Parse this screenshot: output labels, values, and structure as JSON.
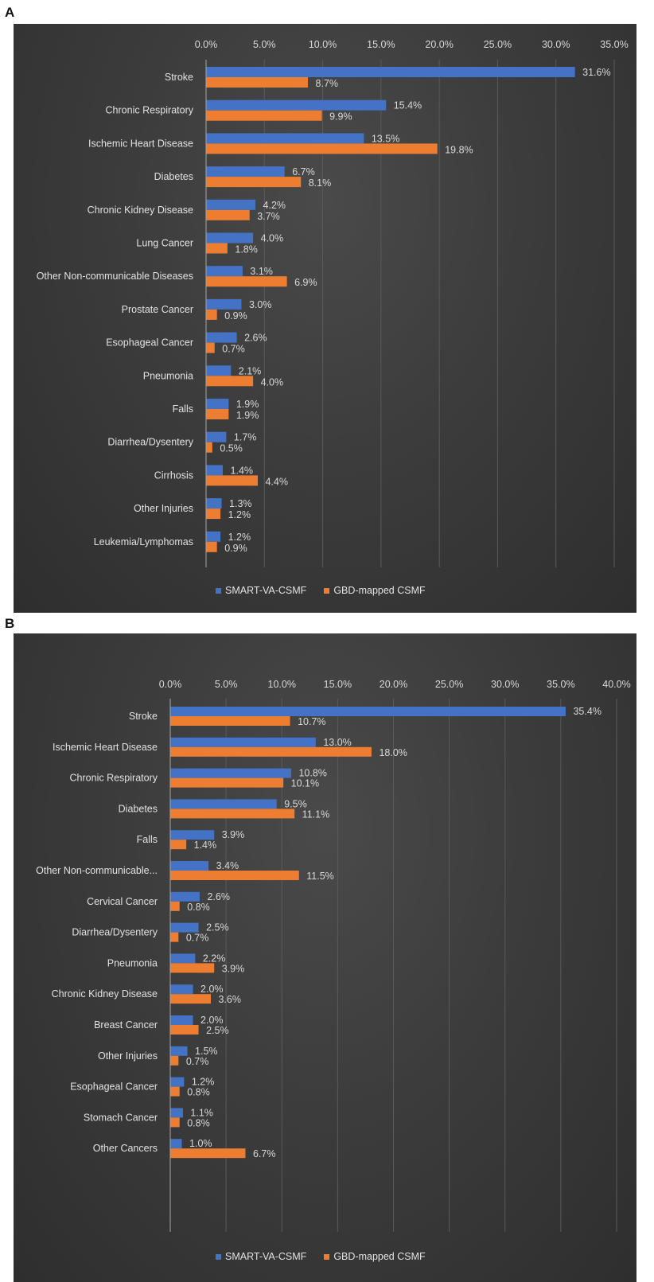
{
  "panels": [
    {
      "letter": "A"
    },
    {
      "letter": "B"
    }
  ],
  "colors": {
    "smart": "#4472C4",
    "gbd": "#ED7D31",
    "background": "#3c3c3c"
  },
  "chart_data": [
    {
      "type": "bar",
      "orientation": "horizontal",
      "axis_position": "top",
      "xlim": [
        0,
        35
      ],
      "xticks": [
        "0.0%",
        "5.0%",
        "10.0%",
        "15.0%",
        "20.0%",
        "25.0%",
        "30.0%",
        "35.0%"
      ],
      "grid": true,
      "legend_position": "bottom",
      "categories": [
        "Stroke",
        "Chronic Respiratory",
        "Ischemic Heart Disease",
        "Diabetes",
        "Chronic Kidney Disease",
        "Lung Cancer",
        "Other Non-communicable Diseases",
        "Prostate Cancer",
        "Esophageal Cancer",
        "Pneumonia",
        "Falls",
        "Diarrhea/Dysentery",
        "Cirrhosis",
        "Other Injuries",
        "Leukemia/Lymphomas"
      ],
      "series": [
        {
          "name": "SMART-VA-CSMF",
          "values": [
            31.6,
            15.4,
            13.5,
            6.7,
            4.2,
            4.0,
            3.1,
            3.0,
            2.6,
            2.1,
            1.9,
            1.7,
            1.4,
            1.3,
            1.2
          ],
          "labels": [
            "31.6%",
            "15.4%",
            "13.5%",
            "6.7%",
            "4.2%",
            "4.0%",
            "3.1%",
            "3.0%",
            "2.6%",
            "2.1%",
            "1.9%",
            "1.7%",
            "1.4%",
            "1.3%",
            "1.2%"
          ]
        },
        {
          "name": "GBD-mapped CSMF",
          "values": [
            8.7,
            9.9,
            19.8,
            8.1,
            3.7,
            1.8,
            6.9,
            0.9,
            0.7,
            4.0,
            1.9,
            0.5,
            4.4,
            1.2,
            0.9
          ],
          "labels": [
            "8.7%",
            "9.9%",
            "19.8%",
            "8.1%",
            "3.7%",
            "1.8%",
            "6.9%",
            "0.9%",
            "0.7%",
            "4.0%",
            "1.9%",
            "0.5%",
            "4.4%",
            "1.2%",
            "0.9%"
          ]
        }
      ]
    },
    {
      "type": "bar",
      "orientation": "horizontal",
      "axis_position": "top",
      "xlim": [
        0,
        40
      ],
      "xticks": [
        "0.0%",
        "5.0%",
        "10.0%",
        "15.0%",
        "20.0%",
        "25.0%",
        "30.0%",
        "35.0%",
        "40.0%"
      ],
      "grid": true,
      "legend_position": "bottom",
      "categories": [
        "Stroke",
        "Ischemic Heart Disease",
        "Chronic Respiratory",
        "Diabetes",
        "Falls",
        "Other Non-communicable...",
        "Cervical Cancer",
        "Diarrhea/Dysentery",
        "Pneumonia",
        "Chronic Kidney Disease",
        "Breast Cancer",
        "Other Injuries",
        "Esophageal Cancer",
        "Stomach Cancer",
        "Other Cancers"
      ],
      "series": [
        {
          "name": "SMART-VA-CSMF",
          "values": [
            35.4,
            13.0,
            10.8,
            9.5,
            3.9,
            3.4,
            2.6,
            2.5,
            2.2,
            2.0,
            2.0,
            1.5,
            1.2,
            1.1,
            1.0
          ],
          "labels": [
            "35.4%",
            "13.0%",
            "10.8%",
            "9.5%",
            "3.9%",
            "3.4%",
            "2.6%",
            "2.5%",
            "2.2%",
            "2.0%",
            "2.0%",
            "1.5%",
            "1.2%",
            "1.1%",
            "1.0%"
          ]
        },
        {
          "name": "GBD-mapped CSMF",
          "values": [
            10.7,
            18.0,
            10.1,
            11.1,
            1.4,
            11.5,
            0.8,
            0.7,
            3.9,
            3.6,
            2.5,
            0.7,
            0.8,
            0.8,
            6.7
          ],
          "labels": [
            "10.7%",
            "18.0%",
            "10.1%",
            "11.1%",
            "1.4%",
            "11.5%",
            "0.8%",
            "0.7%",
            "3.9%",
            "3.6%",
            "2.5%",
            "0.7%",
            "0.8%",
            "0.8%",
            "6.7%"
          ]
        }
      ]
    }
  ]
}
